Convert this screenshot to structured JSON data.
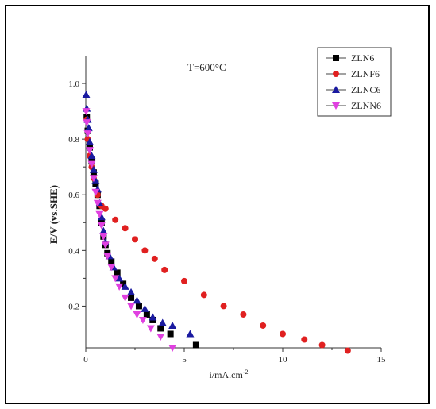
{
  "chart_data": {
    "type": "scatter",
    "annotation": "T=600°C",
    "xlabel": "i/mA.cm",
    "xlabel_superscript": "-2",
    "ylabel": "E/V (vs.SHE)",
    "xlim": [
      0,
      15
    ],
    "ylim": [
      0.05,
      1.1
    ],
    "xticks": [
      0,
      5,
      10,
      15
    ],
    "yticks": [
      0.2,
      0.4,
      0.6,
      0.8,
      1.0
    ],
    "ytick_labels": [
      "0.2",
      "0.4",
      "0.6",
      "0.8",
      "1.0"
    ],
    "grid": false,
    "legend_position": "top-right",
    "series": [
      {
        "name": "ZLN6",
        "marker": "square",
        "color": "#000000",
        "x": [
          0.05,
          0.1,
          0.2,
          0.3,
          0.4,
          0.5,
          0.6,
          0.7,
          0.8,
          0.9,
          1.0,
          1.1,
          1.3,
          1.6,
          1.9,
          2.3,
          2.7,
          3.1,
          3.4,
          3.8,
          4.3,
          5.6
        ],
        "y": [
          0.88,
          0.83,
          0.77,
          0.72,
          0.68,
          0.64,
          0.6,
          0.56,
          0.5,
          0.45,
          0.42,
          0.39,
          0.36,
          0.32,
          0.28,
          0.23,
          0.2,
          0.17,
          0.15,
          0.12,
          0.1,
          0.06
        ]
      },
      {
        "name": "ZLNF6",
        "marker": "circle",
        "color": "#e02020",
        "x": [
          0.05,
          0.1,
          0.2,
          0.3,
          0.4,
          0.6,
          0.8,
          1.0,
          1.5,
          2.0,
          2.5,
          3.0,
          3.5,
          4.0,
          5.0,
          6.0,
          7.0,
          8.0,
          9.0,
          10.0,
          11.1,
          12.0,
          13.3
        ],
        "y": [
          0.87,
          0.8,
          0.74,
          0.7,
          0.66,
          0.6,
          0.56,
          0.55,
          0.51,
          0.48,
          0.44,
          0.4,
          0.37,
          0.33,
          0.29,
          0.24,
          0.2,
          0.17,
          0.13,
          0.1,
          0.08,
          0.06,
          0.04
        ]
      },
      {
        "name": "ZLNC6",
        "marker": "triangle-up",
        "color": "#1a1aa0",
        "x": [
          0.02,
          0.05,
          0.1,
          0.15,
          0.2,
          0.3,
          0.4,
          0.5,
          0.6,
          0.7,
          0.8,
          0.9,
          1.0,
          1.2,
          1.4,
          1.7,
          2.0,
          2.3,
          2.6,
          3.0,
          3.4,
          3.9,
          4.4,
          5.3
        ],
        "y": [
          0.96,
          0.91,
          0.87,
          0.84,
          0.79,
          0.74,
          0.69,
          0.65,
          0.62,
          0.57,
          0.52,
          0.47,
          0.43,
          0.38,
          0.34,
          0.3,
          0.27,
          0.25,
          0.22,
          0.19,
          0.16,
          0.14,
          0.13,
          0.1
        ]
      },
      {
        "name": "ZLNN6",
        "marker": "triangle-down",
        "color": "#e040e0",
        "x": [
          0.02,
          0.05,
          0.1,
          0.2,
          0.3,
          0.4,
          0.5,
          0.6,
          0.7,
          0.8,
          0.9,
          1.0,
          1.1,
          1.3,
          1.5,
          1.7,
          2.0,
          2.3,
          2.6,
          2.9,
          3.3,
          3.8,
          4.4
        ],
        "y": [
          0.9,
          0.86,
          0.82,
          0.76,
          0.71,
          0.66,
          0.61,
          0.57,
          0.53,
          0.49,
          0.45,
          0.42,
          0.38,
          0.34,
          0.3,
          0.27,
          0.23,
          0.2,
          0.17,
          0.15,
          0.12,
          0.09,
          0.05
        ]
      }
    ]
  }
}
